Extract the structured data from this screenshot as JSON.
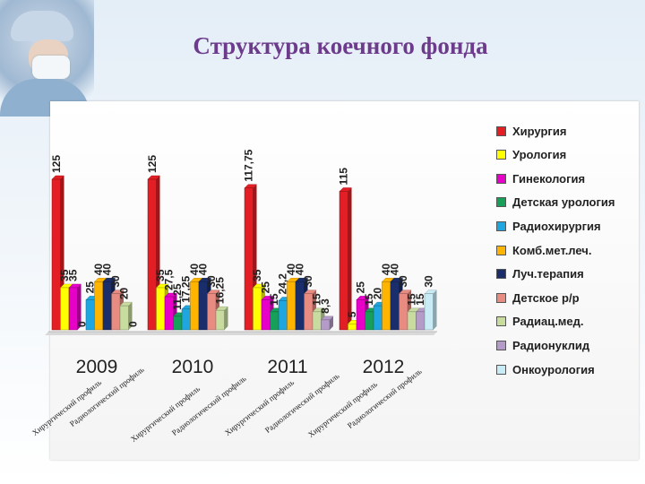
{
  "slide": {
    "title": "Структура коечного фонда",
    "photo_icon": "surgeon-photo"
  },
  "chart_data": {
    "type": "bar",
    "categories": [
      "2009",
      "2010",
      "2011",
      "2012"
    ],
    "series": [
      {
        "name": "Хирургия",
        "color": "#e31e24",
        "values": [
          125,
          125,
          117.75,
          115
        ]
      },
      {
        "name": "Урология",
        "color": "#ffff00",
        "values": [
          35,
          35,
          35,
          5
        ]
      },
      {
        "name": "Гинекология",
        "color": "#e600c8",
        "values": [
          35,
          27.5,
          25,
          25
        ]
      },
      {
        "name": "Детская урология",
        "color": "#16a05a",
        "values": [
          0,
          11.25,
          15,
          15
        ]
      },
      {
        "name": "Радиохирургия",
        "color": "#1fa6e0",
        "values": [
          25,
          17.25,
          24.2,
          20
        ]
      },
      {
        "name": "Комб.мет.леч.",
        "color": "#ffb400",
        "values": [
          40,
          40,
          40,
          40
        ]
      },
      {
        "name": "Луч.терапия",
        "color": "#1a2e6b",
        "values": [
          40,
          40,
          40,
          40
        ]
      },
      {
        "name": "Детское р/р",
        "color": "#e88c82",
        "values": [
          30,
          30,
          30,
          30
        ]
      },
      {
        "name": "Радиац.мед.",
        "color": "#c8dca0",
        "values": [
          20,
          16.25,
          15,
          15
        ]
      },
      {
        "name": "Радионуклид",
        "color": "#b49bc8",
        "values": [
          0,
          0,
          8.3,
          15
        ]
      },
      {
        "name": "Онкоурология",
        "color": "#c8ebf5",
        "values": [
          0,
          0,
          0,
          30
        ]
      }
    ],
    "data_labels": [
      [
        "125",
        "35",
        "35",
        "0",
        "25",
        "40",
        "40",
        "30",
        "20",
        "0",
        ""
      ],
      [
        "125",
        "35",
        "27,5",
        "11,25",
        "17,25",
        "40",
        "40",
        "30",
        "16,25",
        "",
        ""
      ],
      [
        "117,75",
        "35",
        "25",
        "15",
        "24,2",
        "40",
        "40",
        "30",
        "15",
        "8,3",
        ""
      ],
      [
        "115",
        "5",
        "25",
        "15",
        "20",
        "40",
        "40",
        "30",
        "15",
        "15",
        "30"
      ]
    ],
    "category_annotations": [
      [
        "Хирургический профиль",
        "Радиологический профиль"
      ],
      [
        "Хирургический профиль",
        "Радиологический профиль"
      ],
      [
        "Хирургический профиль",
        "Радиологический профиль"
      ],
      [
        "Хирургический профиль",
        "Радиологический профиль"
      ]
    ],
    "ylim": [
      0,
      140
    ],
    "grid": false,
    "legend_position": "right"
  }
}
